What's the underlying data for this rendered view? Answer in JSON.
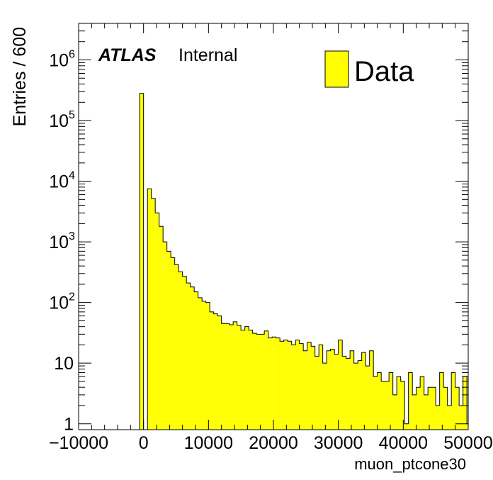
{
  "chart_data": {
    "type": "bar",
    "style": "histogram",
    "title_label": "ATLAS",
    "title_suffix": "Internal",
    "xlabel": "muon_ptcone30",
    "ylabel": "Entries / 600",
    "legend": [
      "Data"
    ],
    "legend_position": "top-right",
    "fill_color": "#ffff00",
    "line_color": "#000000",
    "xlim": [
      -10000,
      50000
    ],
    "ylim": [
      0.8,
      4000000
    ],
    "yscale": "log",
    "bin_width": 600,
    "x_tick_labels": [
      "−10000",
      "0",
      "10000",
      "20000",
      "30000",
      "40000",
      "50000"
    ],
    "x_tick_values": [
      -10000,
      0,
      10000,
      20000,
      30000,
      40000,
      50000
    ],
    "y_tick_labels": [
      {
        "base": "1",
        "exp": "",
        "value": 1
      },
      {
        "base": "10",
        "exp": "",
        "value": 10
      },
      {
        "base": "10",
        "exp": "2",
        "value": 100
      },
      {
        "base": "10",
        "exp": "3",
        "value": 1000
      },
      {
        "base": "10",
        "exp": "4",
        "value": 10000
      },
      {
        "base": "10",
        "exp": "5",
        "value": 100000
      },
      {
        "base": "10",
        "exp": "6",
        "value": 1000000
      }
    ],
    "x": [
      -600,
      600,
      1200,
      1800,
      2400,
      3000,
      3600,
      4200,
      4800,
      5400,
      6000,
      6600,
      7200,
      7800,
      8400,
      9000,
      9600,
      10200,
      10800,
      11400,
      12000,
      12600,
      13200,
      13800,
      14400,
      15000,
      15600,
      16200,
      16800,
      17400,
      18000,
      18600,
      19200,
      19800,
      20400,
      21000,
      21600,
      22200,
      22800,
      23400,
      24000,
      24600,
      25200,
      25800,
      26400,
      27000,
      27600,
      28200,
      28800,
      29400,
      30000,
      30600,
      31200,
      31800,
      32400,
      33000,
      33600,
      34200,
      34800,
      35400,
      36000,
      36600,
      37200,
      37800,
      38400,
      39000,
      39600,
      40200,
      40800,
      41400,
      42000,
      42600,
      43200,
      43800,
      44400,
      45000,
      45600,
      46200,
      46800,
      47400,
      48000,
      48600,
      49200,
      49800
    ],
    "values": [
      280000,
      7500,
      5200,
      3000,
      1800,
      1000,
      700,
      550,
      420,
      320,
      270,
      210,
      180,
      150,
      120,
      105,
      100,
      70,
      65,
      60,
      45,
      45,
      43,
      48,
      42,
      35,
      40,
      35,
      31,
      30,
      30,
      34,
      26,
      27,
      26,
      23,
      24,
      23,
      20,
      24,
      21,
      16,
      22,
      19,
      13,
      20,
      10,
      16,
      17,
      14,
      24,
      13,
      12,
      16,
      10,
      11,
      15,
      9,
      16,
      6,
      7,
      5,
      5,
      7,
      3,
      6,
      5,
      1,
      7,
      3,
      4,
      6,
      3,
      4,
      4,
      2,
      7,
      4,
      2,
      7,
      4,
      2,
      6,
      1
    ]
  }
}
